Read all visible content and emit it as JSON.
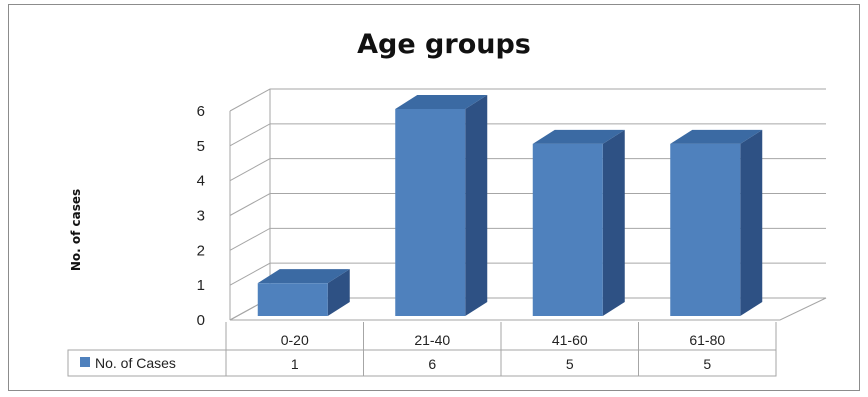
{
  "chart_data": {
    "type": "bar",
    "title": "Age groups",
    "ylabel": "No. of cases",
    "xlabel": "",
    "categories": [
      "0-20",
      "21-40",
      "41-60",
      "61-80"
    ],
    "series": [
      {
        "name": "No. of Cases",
        "values": [
          1,
          6,
          5,
          5
        ],
        "color": "#4f81bd"
      }
    ],
    "ylim": [
      0,
      6
    ],
    "yticks": [
      0,
      1,
      2,
      3,
      4,
      5,
      6
    ],
    "grid": true,
    "legend": "data-table-bottom",
    "colors": {
      "front": "#4f81bd",
      "side": "#2e5184",
      "top": "#3b6aa3",
      "grid": "#a6a6a6"
    }
  }
}
